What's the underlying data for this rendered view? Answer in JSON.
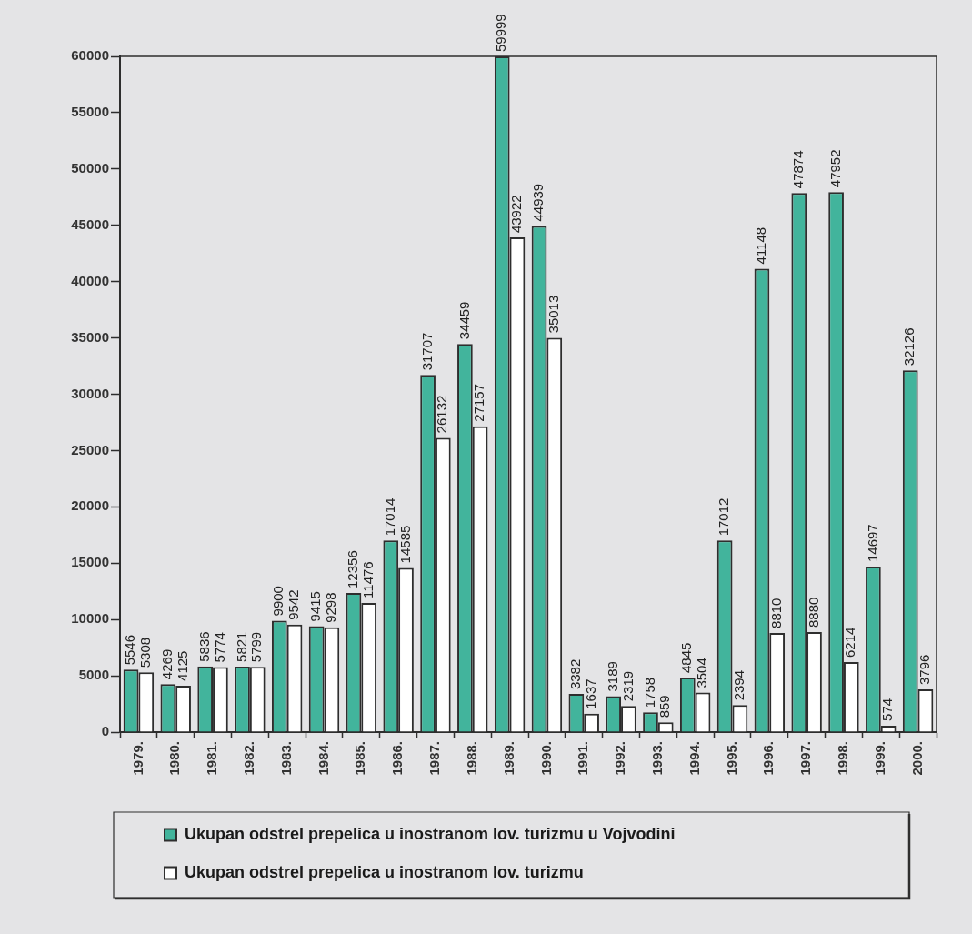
{
  "chart_data": {
    "type": "bar",
    "categories": [
      "1979.",
      "1980.",
      "1981.",
      "1982.",
      "1983.",
      "1984.",
      "1985.",
      "1986.",
      "1987.",
      "1988.",
      "1989.",
      "1990.",
      "1991.",
      "1992.",
      "1993.",
      "1994.",
      "1995.",
      "1996.",
      "1997.",
      "1998.",
      "1999.",
      "2000."
    ],
    "series": [
      {
        "name": "Ukupan odstrel prepelica u inostranom lov. turizmu u Vojvodini",
        "color": "#42b49c",
        "values": [
          5546,
          4269,
          5836,
          5821,
          9900,
          9415,
          12356,
          17014,
          31707,
          34459,
          59999,
          44939,
          3382,
          3189,
          1758,
          4845,
          17012,
          41148,
          47874,
          47952,
          14697,
          32126
        ]
      },
      {
        "name": "Ukupan odstrel prepelica u inostranom lov. turizmu",
        "color": "#ffffff",
        "values": [
          5308,
          4125,
          5774,
          5799,
          9542,
          9298,
          11476,
          14585,
          26132,
          27157,
          43922,
          35013,
          1637,
          2319,
          859,
          3504,
          2394,
          8810,
          8880,
          6214,
          574,
          3796
        ]
      }
    ],
    "ylim": [
      0,
      60000
    ],
    "yticks": [
      0,
      5000,
      10000,
      15000,
      20000,
      25000,
      30000,
      35000,
      40000,
      45000,
      50000,
      55000,
      60000
    ],
    "grid": false,
    "legend": "bottom",
    "data_labels": true
  }
}
